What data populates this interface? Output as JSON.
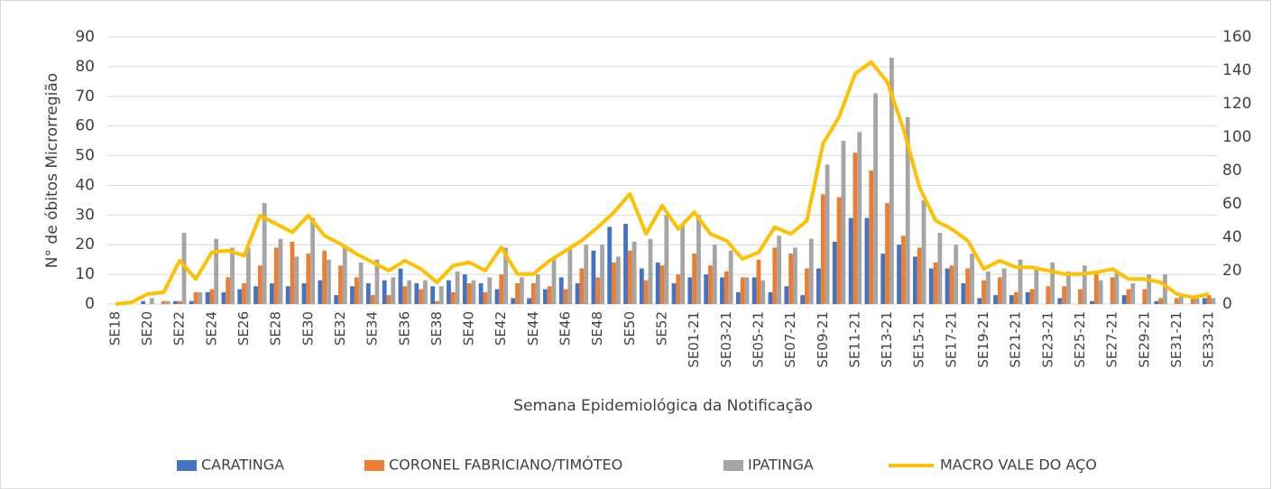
{
  "chart_data": {
    "type": "bar",
    "y_label": "N° de óbitos Microrregião",
    "x_label": "Semana Epidemiológica da Notificação",
    "categories": [
      "SE18",
      null,
      "SE20",
      null,
      "SE22",
      null,
      "SE24",
      null,
      "SE26",
      null,
      "SE28",
      null,
      "SE30",
      null,
      "SE32",
      null,
      "SE34",
      null,
      "SE36",
      null,
      "SE38",
      null,
      "SE40",
      null,
      "SE42",
      null,
      "SE44",
      null,
      "SE46",
      null,
      "SE48",
      null,
      "SE50",
      null,
      "SE52",
      null,
      "SE01-21",
      null,
      "SE03-21",
      null,
      "SE05-21",
      null,
      "SE07-21",
      null,
      "SE09-21",
      null,
      "SE11-21",
      null,
      "SE13-21",
      null,
      "SE15-21",
      null,
      "SE17-21",
      null,
      "SE19-21",
      null,
      "SE21-21",
      null,
      "SE23-21",
      null,
      "SE25-21",
      null,
      "SE27-21",
      null,
      "SE29-21",
      null,
      "SE31-21",
      null,
      "SE33-21"
    ],
    "series": [
      {
        "name": "CARATINGA",
        "type": "bar",
        "color": "#4472c4",
        "values": [
          0,
          0,
          1,
          0,
          1,
          1,
          4,
          4,
          5,
          6,
          7,
          6,
          7,
          8,
          3,
          6,
          7,
          8,
          12,
          7,
          6,
          8,
          10,
          7,
          5,
          2,
          2,
          5,
          9,
          7,
          18,
          26,
          27,
          12,
          14,
          7,
          9,
          10,
          9,
          4,
          9,
          4,
          6,
          3,
          12,
          21,
          29,
          29,
          17,
          20,
          16,
          12,
          12,
          7,
          2,
          3,
          3,
          4,
          0,
          2,
          0,
          1,
          0,
          3,
          0,
          1,
          0,
          0,
          2
        ]
      },
      {
        "name": "CORONEL FABRICIANO/TIMÓTEO",
        "type": "bar",
        "color": "#ed7d31",
        "values": [
          0,
          0,
          0,
          1,
          1,
          4,
          5,
          9,
          7,
          13,
          19,
          21,
          17,
          18,
          13,
          9,
          3,
          3,
          6,
          5,
          1,
          4,
          7,
          4,
          10,
          7,
          7,
          6,
          5,
          12,
          9,
          14,
          18,
          8,
          13,
          10,
          17,
          13,
          11,
          9,
          15,
          19,
          17,
          12,
          37,
          36,
          51,
          45,
          34,
          23,
          19,
          14,
          13,
          12,
          8,
          9,
          4,
          5,
          6,
          6,
          5,
          10,
          9,
          5,
          5,
          2,
          2,
          2,
          3
        ]
      },
      {
        "name": "IPATINGA",
        "type": "bar",
        "color": "#a5a5a5",
        "values": [
          0,
          0,
          2,
          1,
          24,
          4,
          22,
          19,
          19,
          34,
          22,
          16,
          29,
          15,
          19,
          14,
          15,
          9,
          8,
          8,
          6,
          11,
          8,
          9,
          19,
          9,
          10,
          15,
          19,
          20,
          20,
          16,
          21,
          22,
          30,
          27,
          30,
          20,
          18,
          9,
          8,
          23,
          19,
          22,
          47,
          55,
          58,
          71,
          83,
          63,
          35,
          24,
          20,
          17,
          11,
          12,
          15,
          12,
          14,
          11,
          13,
          8,
          11,
          7,
          10,
          10,
          3,
          2,
          2
        ]
      },
      {
        "name": "MACRO VALE DO AÇO",
        "type": "line",
        "axis": "y2",
        "color": "#ffc000",
        "values": [
          0,
          1,
          6,
          7,
          26,
          15,
          31,
          32,
          29,
          53,
          48,
          43,
          53,
          41,
          36,
          30,
          25,
          20,
          26,
          21,
          13,
          23,
          25,
          20,
          34,
          18,
          18,
          26,
          32,
          38,
          46,
          55,
          66,
          42,
          59,
          45,
          55,
          42,
          38,
          27,
          31,
          46,
          42,
          50,
          96,
          112,
          138,
          145,
          133,
          105,
          70,
          50,
          45,
          38,
          21,
          26,
          22,
          22,
          20,
          18,
          18,
          19,
          21,
          15,
          15,
          13,
          6,
          4,
          6
        ]
      }
    ],
    "ylim": [
      0,
      90
    ],
    "yticks": [
      0,
      10,
      20,
      30,
      40,
      50,
      60,
      70,
      80,
      90
    ],
    "y2lim": [
      0,
      160
    ],
    "y2ticks": [
      0,
      20,
      40,
      60,
      80,
      100,
      120,
      140,
      160
    ],
    "grid": true,
    "legend": "bottom"
  }
}
